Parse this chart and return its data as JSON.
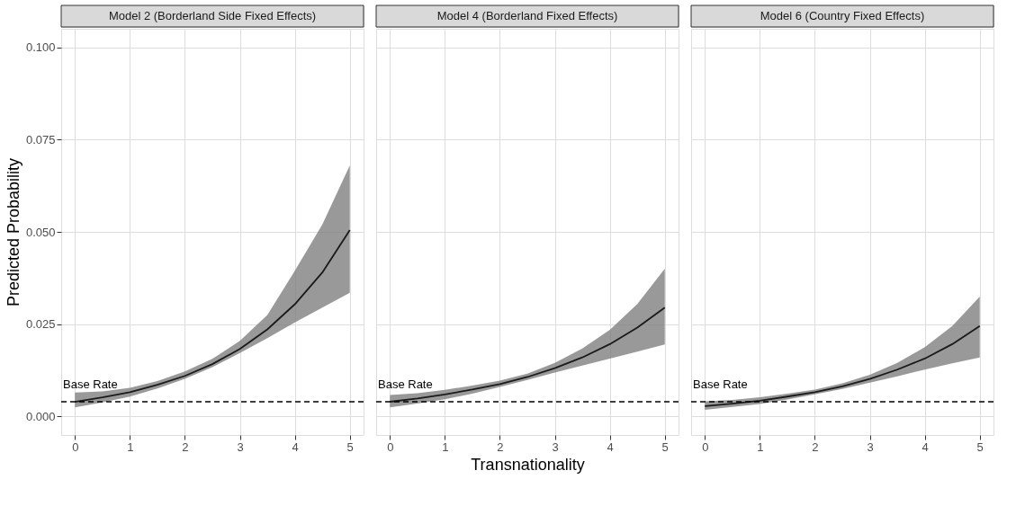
{
  "chart_data": [
    {
      "type": "line",
      "title": "Model 2 (Borderland Side Fixed Effects)",
      "ylabel": "Predicted Probability",
      "xlim": [
        -0.25,
        5.25
      ],
      "xticks": [
        0,
        1,
        2,
        3,
        4,
        5
      ],
      "ylim": [
        -0.005,
        0.105
      ],
      "yticks": [
        {
          "value": 0,
          "label": "0.000"
        },
        0.025,
        {
          "value": 0.05,
          "label": "0.050"
        },
        0.075,
        {
          "value": 0.1,
          "label": "0.100"
        }
      ],
      "grid": true,
      "x": [
        0,
        0.5,
        1,
        1.5,
        2,
        2.5,
        3,
        3.5,
        4,
        4.5,
        5
      ],
      "series": [
        {
          "color": "#1a1a1a",
          "line_style": "solid",
          "values": [
            0.004,
            0.0052,
            0.0066,
            0.0086,
            0.011,
            0.0142,
            0.0183,
            0.0236,
            0.0304,
            0.039,
            0.0505
          ],
          "lower": [
            0.0025,
            0.0038,
            0.0054,
            0.0076,
            0.0102,
            0.0134,
            0.0172,
            0.0212,
            0.0255,
            0.0295,
            0.0335
          ],
          "upper": [
            0.0065,
            0.0068,
            0.0078,
            0.0096,
            0.0122,
            0.0156,
            0.0205,
            0.0275,
            0.0395,
            0.052,
            0.068
          ]
        }
      ],
      "ref_lines": [
        {
          "axis": "y",
          "value": 0.004,
          "label": "Base Rate",
          "line_style": "dashed",
          "color": "#000000"
        }
      ]
    },
    {
      "type": "line",
      "title": "Model 4 (Borderland Fixed Effects)",
      "xlabel": "Transnationality",
      "tick_labels": "x",
      "xlim": [
        -0.25,
        5.25
      ],
      "xticks": [
        0,
        1,
        2,
        3,
        4,
        5
      ],
      "ylim": [
        -0.005,
        0.105
      ],
      "yticks": [
        0.0,
        0.025,
        0.05,
        0.075,
        0.1
      ],
      "grid": true,
      "x": [
        0,
        0.5,
        1,
        1.5,
        2,
        2.5,
        3,
        3.5,
        4,
        4.5,
        5
      ],
      "series": [
        {
          "color": "#1a1a1a",
          "line_style": "solid",
          "values": [
            0.004,
            0.0049,
            0.006,
            0.0073,
            0.0088,
            0.0107,
            0.0131,
            0.016,
            0.0196,
            0.0241,
            0.0295
          ],
          "lower": [
            0.0025,
            0.0035,
            0.0047,
            0.0062,
            0.008,
            0.0099,
            0.0119,
            0.0138,
            0.0157,
            0.0176,
            0.0195
          ],
          "upper": [
            0.0058,
            0.0063,
            0.0072,
            0.0084,
            0.0097,
            0.0116,
            0.0145,
            0.0184,
            0.0235,
            0.0305,
            0.04
          ]
        }
      ],
      "ref_lines": [
        {
          "axis": "y",
          "value": 0.004,
          "label": "Base Rate",
          "line_style": "dashed",
          "color": "#000000"
        }
      ]
    },
    {
      "type": "line",
      "title": "Model 6 (Country Fixed Effects)",
      "tick_labels": "x",
      "xlim": [
        -0.25,
        5.25
      ],
      "xticks": [
        0,
        1,
        2,
        3,
        4,
        5
      ],
      "ylim": [
        -0.005,
        0.105
      ],
      "yticks": [
        0.0,
        0.025,
        0.05,
        0.075,
        0.1
      ],
      "grid": true,
      "x": [
        0,
        0.5,
        1,
        1.5,
        2,
        2.5,
        3,
        3.5,
        4,
        4.5,
        5
      ],
      "series": [
        {
          "color": "#1a1a1a",
          "line_style": "solid",
          "values": [
            0.0028,
            0.0035,
            0.0043,
            0.0054,
            0.0066,
            0.0082,
            0.0102,
            0.0127,
            0.0157,
            0.0196,
            0.0245
          ],
          "lower": [
            0.0018,
            0.0026,
            0.0034,
            0.0046,
            0.006,
            0.0075,
            0.0092,
            0.0109,
            0.0127,
            0.0144,
            0.016
          ],
          "upper": [
            0.0041,
            0.0045,
            0.0052,
            0.0062,
            0.0073,
            0.009,
            0.0113,
            0.0145,
            0.0188,
            0.0245,
            0.0325
          ]
        }
      ],
      "ref_lines": [
        {
          "axis": "y",
          "value": 0.004,
          "label": "Base Rate",
          "line_style": "dashed",
          "color": "#000000"
        }
      ]
    }
  ]
}
